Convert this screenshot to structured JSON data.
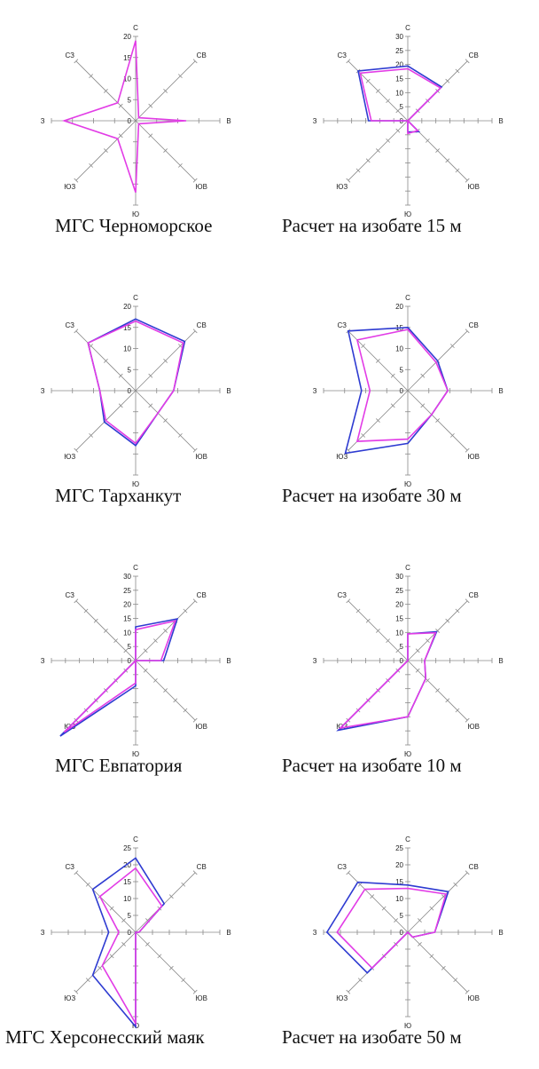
{
  "colors": {
    "series_a": "#2e3bd1",
    "series_b": "#e23ce6",
    "axis": "#8a8a8a"
  },
  "chart_data": [
    {
      "type": "radar",
      "caption": "МГС Черноморское",
      "directions": [
        "С",
        "СВ",
        "В",
        "ЮВ",
        "Ю",
        "ЮЗ",
        "З",
        "СЗ"
      ],
      "ticks": [
        "0",
        "5",
        "10",
        "15",
        "20"
      ],
      "ylim": [
        0,
        20
      ],
      "series": [
        {
          "values": [
            19,
            1,
            12,
            1,
            17,
            6,
            17,
            6
          ]
        }
      ]
    },
    {
      "type": "radar",
      "caption": "Расчет на изобате 15 м",
      "directions": [
        "С",
        "СВ",
        "В",
        "ЮВ",
        "Ю",
        "ЮЗ",
        "З",
        "СЗ"
      ],
      "ticks": [
        "0",
        "5",
        "10",
        "15",
        "20",
        "25",
        "30"
      ],
      "ylim": [
        0,
        30
      ],
      "series": [
        {
          "values": [
            19.5,
            17,
            0,
            5.5,
            4,
            0,
            14,
            25
          ]
        },
        {
          "values": [
            18.5,
            16.5,
            0,
            5,
            4.5,
            0,
            13,
            24
          ]
        }
      ]
    },
    {
      "type": "radar",
      "caption": "МГС Тарханкут",
      "directions": [
        "С",
        "СВ",
        "В",
        "ЮВ",
        "Ю",
        "ЮЗ",
        "З",
        "СЗ"
      ],
      "ticks": [
        "0",
        "5",
        "10",
        "15",
        "20"
      ],
      "ylim": [
        0,
        20
      ],
      "series": [
        {
          "values": [
            17,
            16.5,
            9,
            7.5,
            13,
            10.5,
            8.5,
            16
          ]
        },
        {
          "values": [
            16.5,
            16,
            9,
            7.5,
            12.5,
            10,
            8.5,
            16
          ]
        }
      ]
    },
    {
      "type": "radar",
      "caption": "Расчет на изобате 30 м",
      "directions": [
        "С",
        "СВ",
        "В",
        "ЮВ",
        "Ю",
        "ЮЗ",
        "З",
        "СЗ"
      ],
      "ticks": [
        "0",
        "5",
        "10",
        "15",
        "20"
      ],
      "ylim": [
        0,
        20
      ],
      "series": [
        {
          "values": [
            15,
            10,
            9.5,
            8,
            12.5,
            21,
            11,
            20
          ]
        },
        {
          "values": [
            14.5,
            9.5,
            9.5,
            8,
            11.5,
            17,
            9,
            17
          ]
        }
      ]
    },
    {
      "type": "radar",
      "caption": "МГС Евпатория",
      "directions": [
        "С",
        "СВ",
        "В",
        "ЮВ",
        "Ю",
        "ЮЗ",
        "З",
        "СЗ"
      ],
      "ticks": [
        "0",
        "5",
        "10",
        "15",
        "20",
        "25",
        "30"
      ],
      "ylim": [
        0,
        30
      ],
      "series": [
        {
          "values": [
            12,
            21,
            10,
            0,
            9,
            38,
            0,
            0
          ]
        },
        {
          "values": [
            11,
            20,
            9,
            0,
            8,
            36,
            0,
            0
          ]
        }
      ]
    },
    {
      "type": "radar",
      "caption": "Расчет на изобате 10 м",
      "directions": [
        "С",
        "СВ",
        "В",
        "ЮВ",
        "Ю",
        "ЮЗ",
        "З",
        "СЗ"
      ],
      "ticks": [
        "0",
        "5",
        "10",
        "15",
        "20",
        "25",
        "30"
      ],
      "ylim": [
        0,
        30
      ],
      "series": [
        {
          "values": [
            9.5,
            14.5,
            6,
            9,
            20,
            35,
            0,
            0
          ]
        },
        {
          "values": [
            9.5,
            14,
            6,
            9,
            20,
            34,
            0,
            0
          ]
        }
      ]
    },
    {
      "type": "radar",
      "caption": "МГС Херсонесский маяк",
      "directions": [
        "С",
        "СВ",
        "В",
        "ЮВ",
        "Ю",
        "ЮЗ",
        "З",
        "СЗ"
      ],
      "ticks": [
        "0",
        "5",
        "10",
        "15",
        "20",
        "25"
      ],
      "ylim": [
        0,
        25
      ],
      "series": [
        {
          "values": [
            22,
            12,
            1,
            0,
            28,
            18,
            8,
            18
          ]
        },
        {
          "values": [
            19,
            11,
            1,
            0,
            27,
            14,
            5,
            15
          ]
        }
      ]
    },
    {
      "type": "radar",
      "caption": "Расчет на изобате 50 м",
      "directions": [
        "С",
        "СВ",
        "В",
        "ЮВ",
        "Ю",
        "ЮЗ",
        "З",
        "СЗ"
      ],
      "ticks": [
        "0",
        "5",
        "10",
        "15",
        "20",
        "25"
      ],
      "ylim": [
        0,
        25
      ],
      "series": [
        {
          "values": [
            14,
            17,
            8,
            2,
            0,
            17,
            24,
            21
          ]
        },
        {
          "values": [
            13,
            16,
            8,
            2,
            0,
            15,
            21,
            18
          ]
        }
      ]
    }
  ]
}
